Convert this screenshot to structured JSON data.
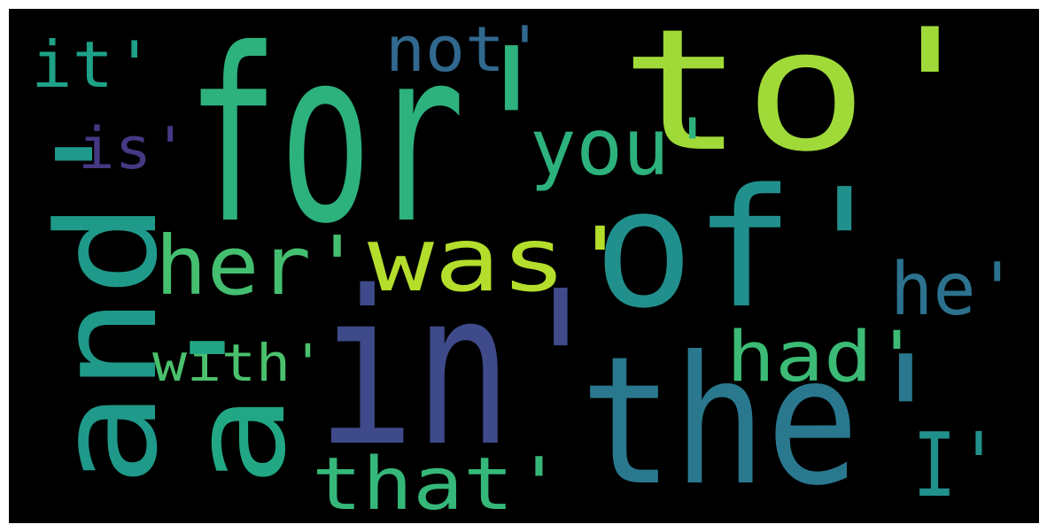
{
  "background_color": "#000000",
  "words": [
    {
      "text": "for'",
      "color": "#2db27d"
    },
    {
      "text": "in'",
      "color": "#3e4a89"
    },
    {
      "text": "to'",
      "color": "#a0da39"
    },
    {
      "text": "the'",
      "color": "#2a788e"
    },
    {
      "text": "of'",
      "color": "#21908d"
    },
    {
      "text": "and'",
      "color": "#1f9a8a"
    },
    {
      "text": "a'",
      "color": "#22a785"
    },
    {
      "text": "was'",
      "color": "#b4de2c"
    },
    {
      "text": "her'",
      "color": "#44bf70"
    },
    {
      "text": "you'",
      "color": "#2db27d"
    },
    {
      "text": "that'",
      "color": "#35b779"
    },
    {
      "text": "had'",
      "color": "#3bbb75"
    },
    {
      "text": "he'",
      "color": "#2c728e"
    },
    {
      "text": "I'",
      "color": "#21918c"
    },
    {
      "text": "it'",
      "color": "#1fa187"
    },
    {
      "text": "not'",
      "color": "#31688e"
    },
    {
      "text": "is'",
      "color": "#443983"
    },
    {
      "text": "with'",
      "color": "#4ac16d"
    }
  ]
}
